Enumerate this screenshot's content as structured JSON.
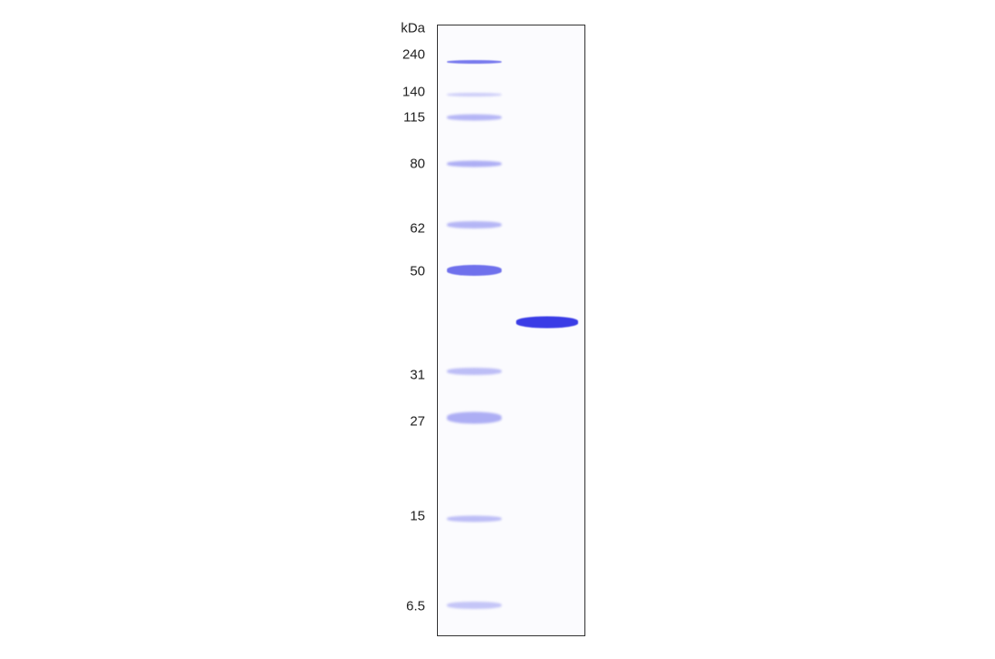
{
  "gel": {
    "unit_label": "kDa",
    "marker_lane": {
      "bands": [
        {
          "label": "240",
          "intensity": 0.85
        },
        {
          "label": "140",
          "intensity": 0.3
        },
        {
          "label": "115",
          "intensity": 0.45
        },
        {
          "label": "80",
          "intensity": 0.5
        },
        {
          "label": "62",
          "intensity": 0.45
        },
        {
          "label": "50",
          "intensity": 0.9
        },
        {
          "label": "31",
          "intensity": 0.4
        },
        {
          "label": "27",
          "intensity": 0.5
        },
        {
          "label": "15",
          "intensity": 0.4
        },
        {
          "label": "6.5",
          "intensity": 0.35
        }
      ]
    },
    "sample_lane": {
      "bands": [
        {
          "intensity": 1.0
        }
      ]
    },
    "band_color": "#3a3ce6"
  }
}
